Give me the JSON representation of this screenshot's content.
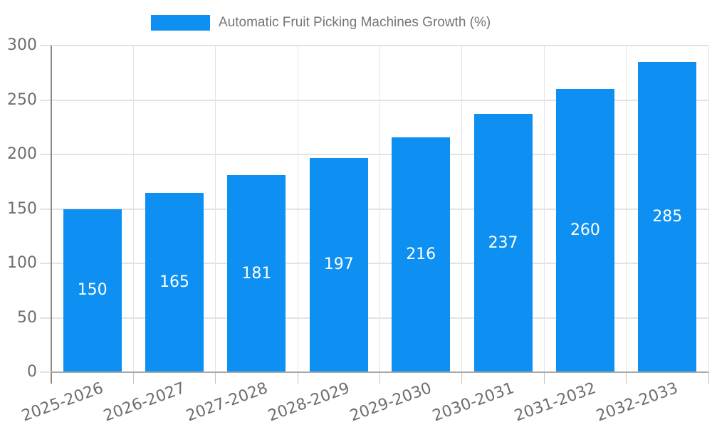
{
  "legend": {
    "label": "Automatic Fruit Picking Machines Growth (%)"
  },
  "colors": {
    "bar": "#0e90f2",
    "grid": "#e3e3e3",
    "axis_text": "#6e6e6e",
    "legend_text": "#757575",
    "baseline": "#a8a8a8",
    "axis_line": "#8a8a8a",
    "tick": "#c2c2c2",
    "value_text": "#ffffff"
  },
  "chart_data": {
    "type": "bar",
    "title": "Automatic Fruit Picking Machines Growth (%)",
    "categories": [
      "2025-2026",
      "2026-2027",
      "2027-2028",
      "2028-2029",
      "2029-2030",
      "2030-2031",
      "2031-2032",
      "2032-2033"
    ],
    "values": [
      150,
      165,
      181,
      197,
      216,
      237,
      260,
      285
    ],
    "xlabel": "",
    "ylabel": "",
    "ylim": [
      0,
      300
    ],
    "yticks": [
      0,
      50,
      100,
      150,
      200,
      250,
      300
    ],
    "grid": true,
    "legend_position": "top",
    "value_labels": "inside-center",
    "x_label_rotation_deg": -20
  }
}
